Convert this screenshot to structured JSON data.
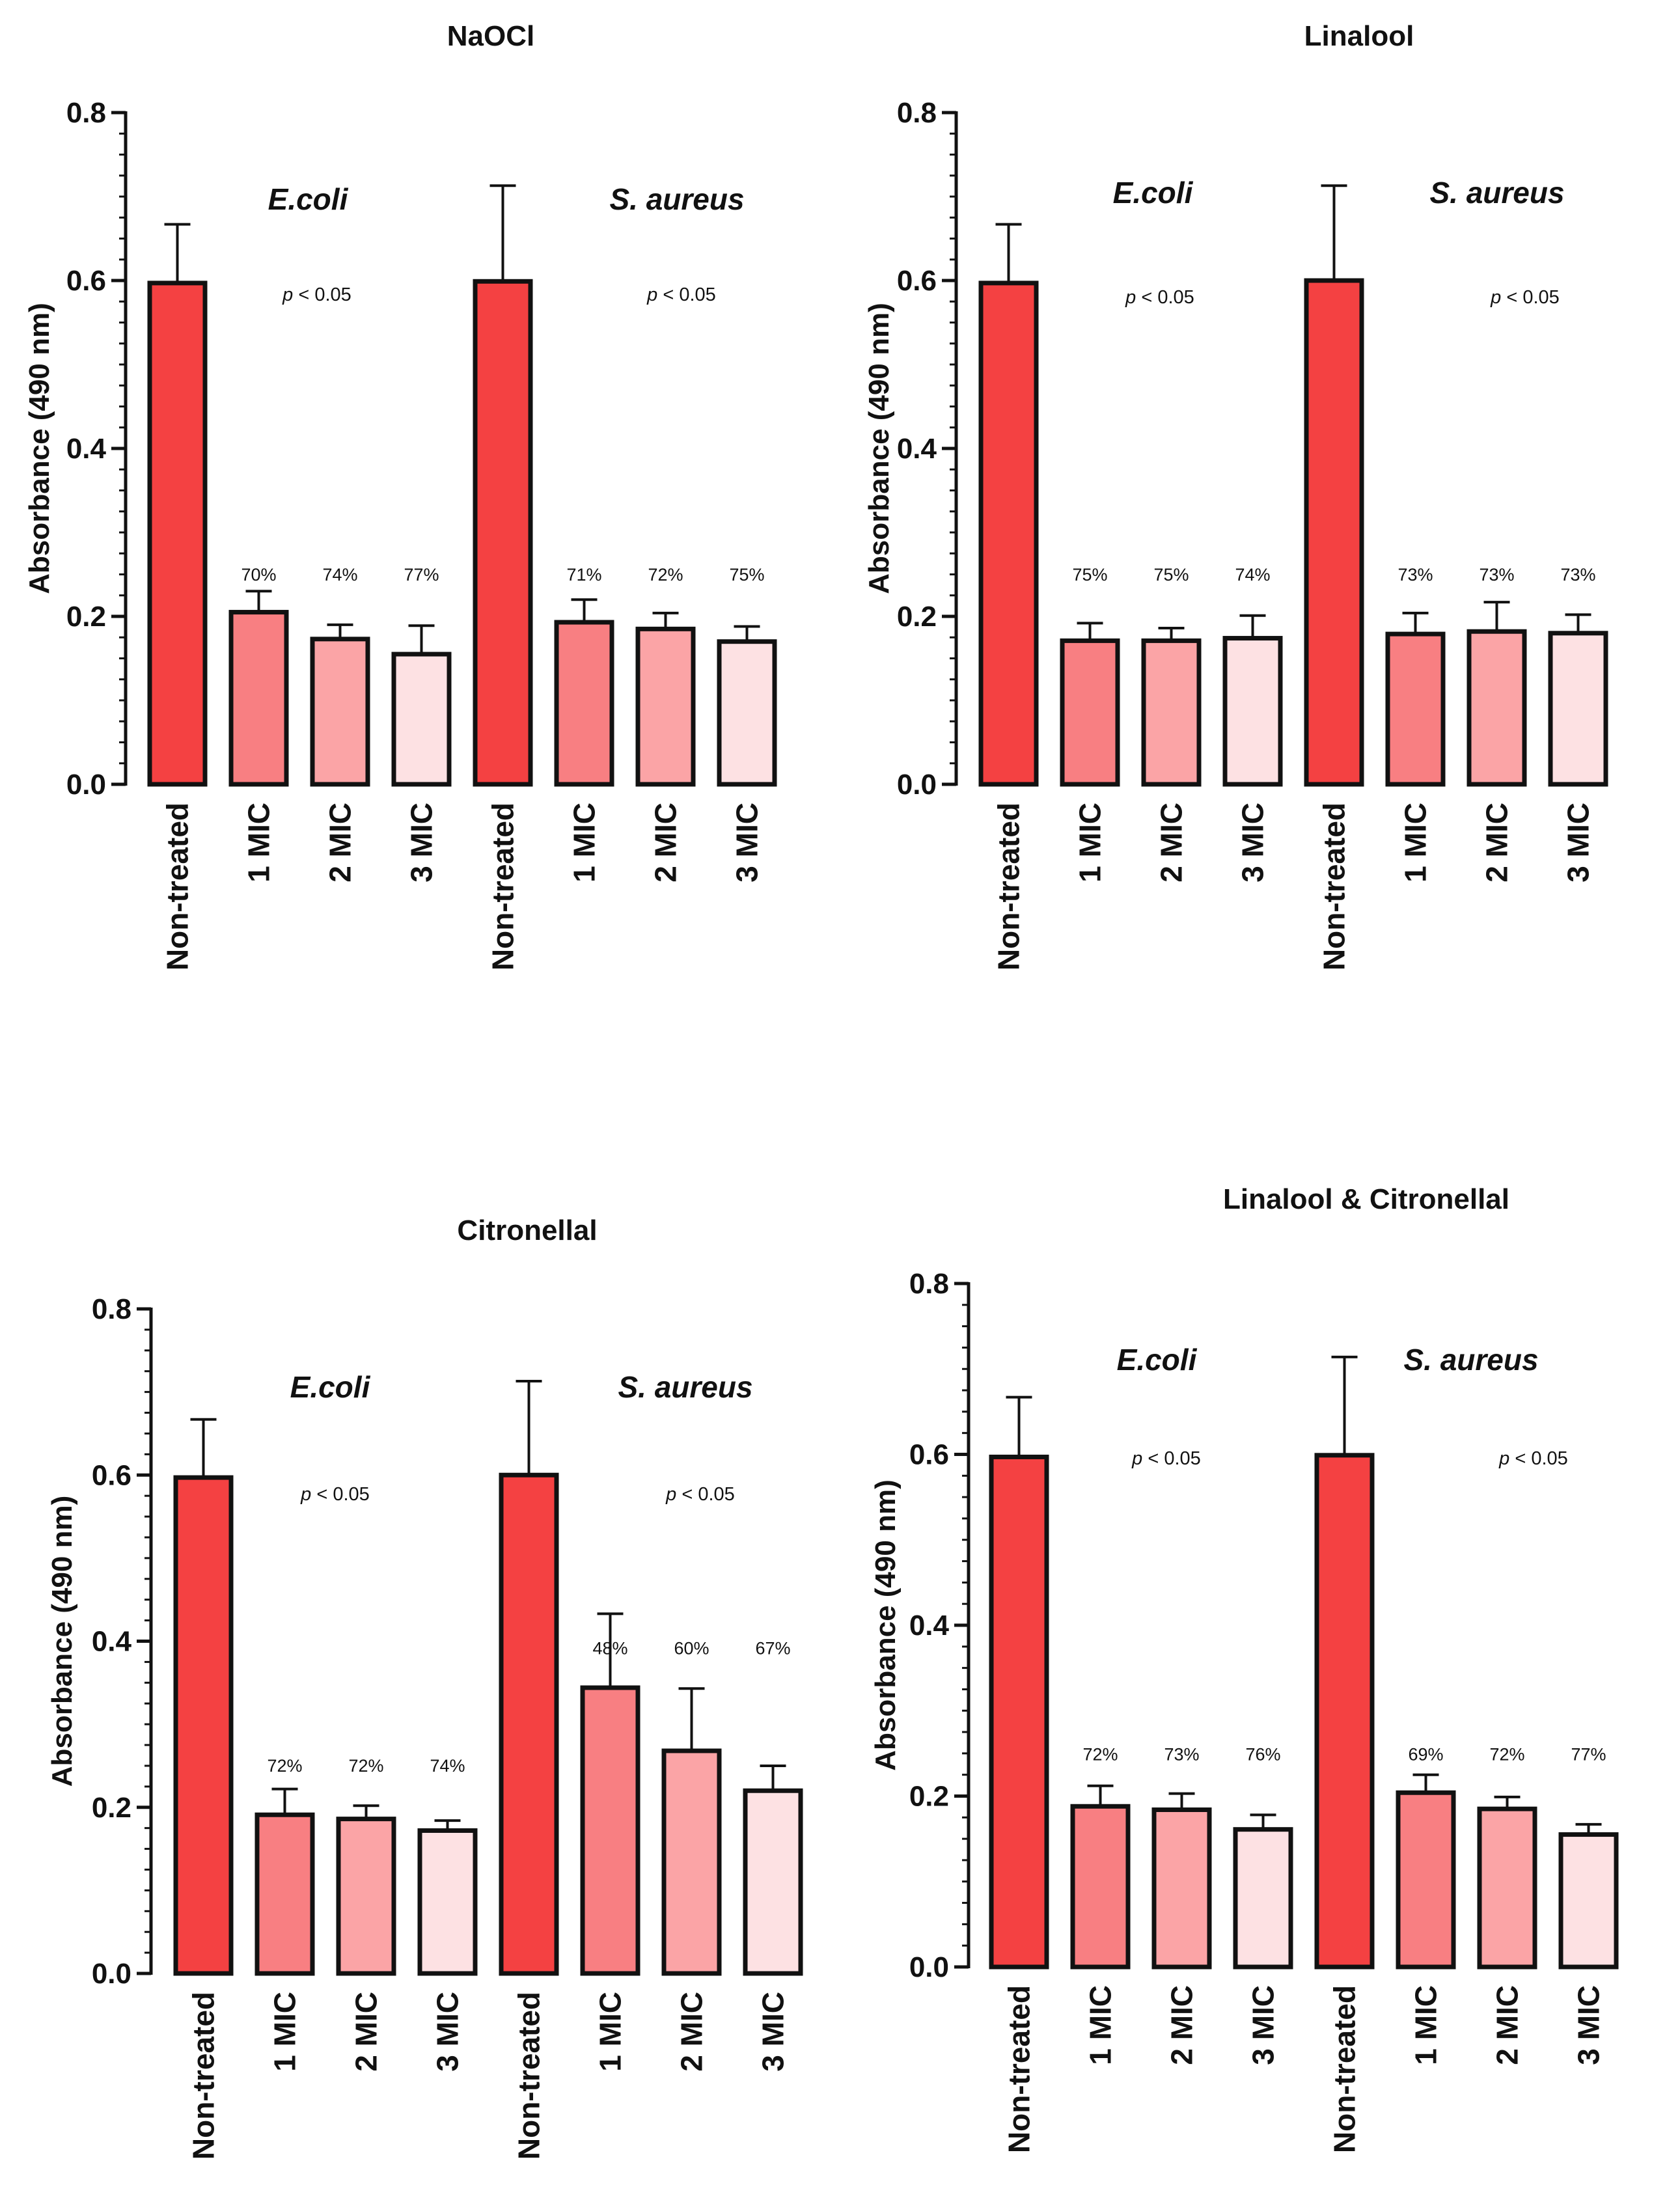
{
  "chart_data": [
    {
      "type": "bar",
      "title": "NaOCl",
      "ylabel": "Absorbance (490 nm)",
      "ylim": [
        0,
        0.8
      ],
      "yticks": [
        "0.0",
        "0.2",
        "0.4",
        "0.6",
        "0.8"
      ],
      "categories": [
        "Non-treated",
        "1 MIC",
        "2 MIC",
        "3 MIC",
        "Non-treated",
        "1 MIC",
        "2 MIC",
        "3 MIC"
      ],
      "values": [
        0.597,
        0.205,
        0.173,
        0.155,
        0.599,
        0.193,
        0.185,
        0.17
      ],
      "errors": [
        0.07,
        0.025,
        0.017,
        0.034,
        0.114,
        0.027,
        0.019,
        0.018
      ],
      "percent_labels": [
        "",
        "70%",
        "74%",
        "77%",
        "",
        "71%",
        "72%",
        "75%"
      ],
      "groups": [
        {
          "name": "E.coli",
          "p_prefix": "p",
          "p_text": " < 0.05"
        },
        {
          "name": "S. aureus",
          "p_prefix": "p",
          "p_text": " < 0.05"
        }
      ],
      "colors": [
        "#f44142",
        "#f87f82",
        "#fba4a6",
        "#fde1e3",
        "#f44142",
        "#f87f82",
        "#fba4a6",
        "#fde1e3"
      ]
    },
    {
      "type": "bar",
      "title": "Linalool",
      "ylabel": "Absorbance (490 nm)",
      "ylim": [
        0,
        0.8
      ],
      "yticks": [
        "0.0",
        "0.2",
        "0.4",
        "0.6",
        "0.8"
      ],
      "categories": [
        "Non-treated",
        "1 MIC",
        "2 MIC",
        "3 MIC",
        "Non-treated",
        "1 MIC",
        "2 MIC",
        "3 MIC"
      ],
      "values": [
        0.597,
        0.171,
        0.171,
        0.174,
        0.6,
        0.179,
        0.182,
        0.18
      ],
      "errors": [
        0.07,
        0.021,
        0.015,
        0.027,
        0.113,
        0.025,
        0.035,
        0.022
      ],
      "percent_labels": [
        "",
        "75%",
        "75%",
        "74%",
        "",
        "73%",
        "73%",
        "73%"
      ],
      "groups": [
        {
          "name": "E.coli",
          "p_prefix": "p",
          "p_text": " < 0.05"
        },
        {
          "name": "S. aureus",
          "p_prefix": "p",
          "p_text": " < 0.05"
        }
      ],
      "colors": [
        "#f44142",
        "#f87f82",
        "#fba4a6",
        "#fde1e3",
        "#f44142",
        "#f87f82",
        "#fba4a6",
        "#fde1e3"
      ]
    },
    {
      "type": "bar",
      "title": "Citronellal",
      "ylabel": "Absorbance (490 nm)",
      "ylim": [
        0,
        0.8
      ],
      "yticks": [
        "0.0",
        "0.2",
        "0.4",
        "0.6",
        "0.8"
      ],
      "categories": [
        "Non-treated",
        "1 MIC",
        "2 MIC",
        "3 MIC",
        "Non-treated",
        "1 MIC",
        "2 MIC",
        "3 MIC"
      ],
      "values": [
        0.597,
        0.191,
        0.186,
        0.172,
        0.6,
        0.344,
        0.268,
        0.22
      ],
      "errors": [
        0.07,
        0.031,
        0.016,
        0.012,
        0.113,
        0.089,
        0.075,
        0.03
      ],
      "percent_labels": [
        "",
        "72%",
        "72%",
        "74%",
        "",
        "48%",
        "60%",
        "67%"
      ],
      "groups": [
        {
          "name": "E.coli",
          "p_prefix": "p",
          "p_text": " < 0.05"
        },
        {
          "name": "S. aureus",
          "p_prefix": "p",
          "p_text": " < 0.05"
        }
      ],
      "colors": [
        "#f44142",
        "#f87f82",
        "#fba4a6",
        "#fde1e3",
        "#f44142",
        "#f87f82",
        "#fba4a6",
        "#fde1e3"
      ]
    },
    {
      "type": "bar",
      "title": "Linalool & Citronellal",
      "ylabel": "Absorbance (490 nm)",
      "ylim": [
        0,
        0.8
      ],
      "yticks": [
        "0.0",
        "0.2",
        "0.4",
        "0.6",
        "0.8"
      ],
      "categories": [
        "Non-treated",
        "1 MIC",
        "2 MIC",
        "3 MIC",
        "Non-treated",
        "1 MIC",
        "2 MIC",
        "3 MIC"
      ],
      "values": [
        0.597,
        0.188,
        0.184,
        0.161,
        0.599,
        0.204,
        0.185,
        0.155
      ],
      "errors": [
        0.07,
        0.024,
        0.019,
        0.017,
        0.115,
        0.021,
        0.014,
        0.012
      ],
      "percent_labels": [
        "",
        "72%",
        "73%",
        "76%",
        "",
        "69%",
        "72%",
        "77%"
      ],
      "groups": [
        {
          "name": "E.coli",
          "p_prefix": "p",
          "p_text": " < 0.05"
        },
        {
          "name": "S. aureus",
          "p_prefix": "p",
          "p_text": " < 0.05"
        }
      ],
      "colors": [
        "#f44142",
        "#f87f82",
        "#fba4a6",
        "#fde1e3",
        "#f44142",
        "#f87f82",
        "#fba4a6",
        "#fde1e3"
      ]
    }
  ]
}
